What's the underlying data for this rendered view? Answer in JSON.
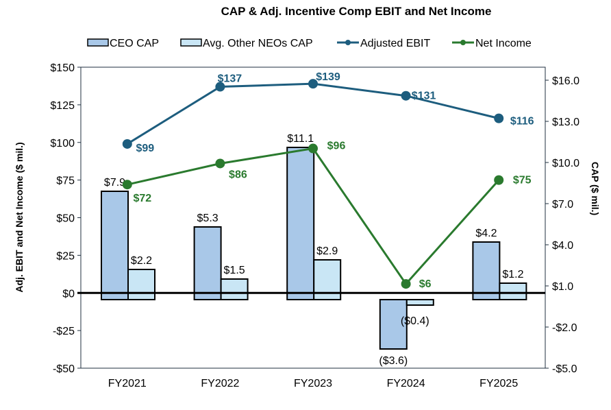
{
  "chart_data": {
    "type": "bar+line",
    "title": "CAP & Adj. Incentive Comp EBIT and Net Income",
    "categories": [
      "FY2021",
      "FY2022",
      "FY2023",
      "FY2024",
      "FY2025"
    ],
    "left_axis": {
      "label": "Adj. EBIT and Net Income  ($ mil.)",
      "range": [
        -50,
        150
      ],
      "ticks": [
        "-$50",
        "-$25",
        "$0",
        "$25",
        "$50",
        "$75",
        "$100",
        "$125",
        "$150"
      ],
      "tick_values": [
        -50,
        -25,
        0,
        25,
        50,
        75,
        100,
        125,
        150
      ]
    },
    "right_axis": {
      "label": "CAP ($ mil.)",
      "range": [
        -5,
        16.95
      ],
      "ticks": [
        "-$5.0",
        "-$2.0",
        "$1.0",
        "$4.0",
        "$7.0",
        "$10.0",
        "$13.0",
        "$16.0"
      ],
      "tick_values": [
        -5,
        -2,
        1,
        4,
        7,
        10,
        13,
        16
      ]
    },
    "legend_position": "top",
    "grid": false,
    "series": [
      {
        "name": "CEO CAP",
        "kind": "bar",
        "axis": "right",
        "color": "#a9c8e8",
        "values": [
          7.9,
          5.3,
          11.1,
          -3.6,
          4.2
        ],
        "labels": [
          "$7.9",
          "$5.3",
          "$11.1",
          "($3.6)",
          "$4.2"
        ]
      },
      {
        "name": "Avg. Other NEOs CAP",
        "kind": "bar",
        "axis": "right",
        "color": "#c9e6f5",
        "values": [
          2.2,
          1.5,
          2.9,
          -0.4,
          1.2
        ],
        "labels": [
          "$2.2",
          "$1.5",
          "$2.9",
          "($0.4)",
          "$1.2"
        ]
      },
      {
        "name": "Adjusted EBIT",
        "kind": "line",
        "axis": "left",
        "color": "#1d5d7e",
        "values": [
          99,
          137,
          139,
          131,
          116
        ],
        "labels": [
          "$99",
          "$137",
          "$139",
          "$131",
          "$116"
        ]
      },
      {
        "name": "Net Income",
        "kind": "line",
        "axis": "left",
        "color": "#2a7a2e",
        "values": [
          72,
          86,
          96,
          6,
          75
        ],
        "labels": [
          "$72",
          "$86",
          "$96",
          "$6",
          "$75"
        ]
      }
    ]
  }
}
